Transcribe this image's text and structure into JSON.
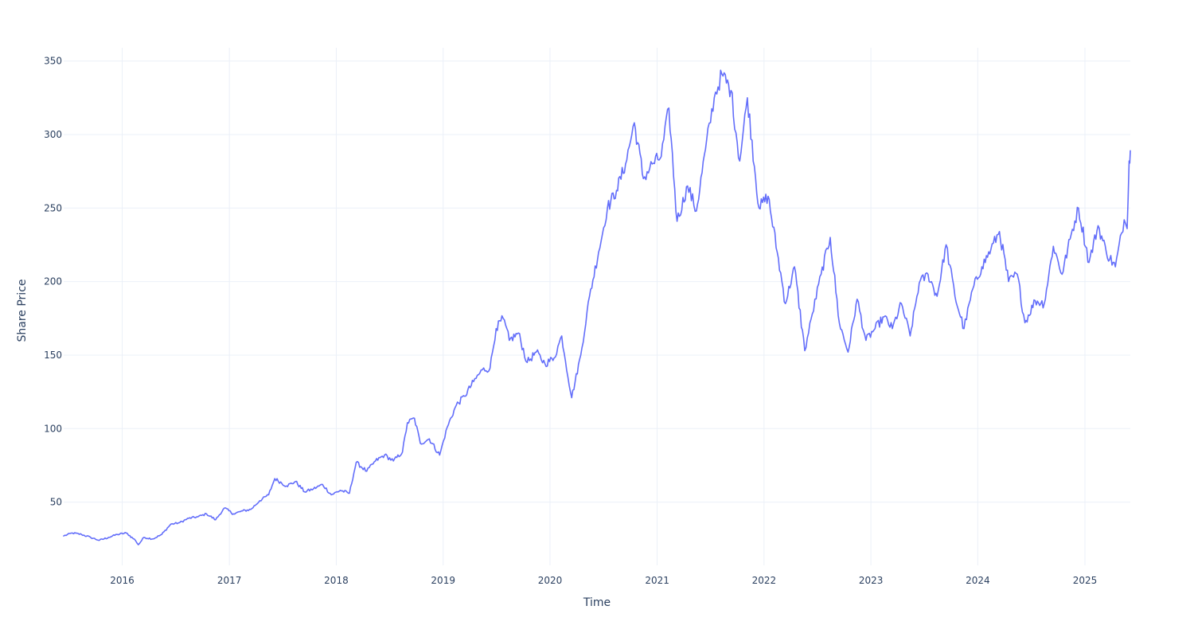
{
  "chart_data": {
    "type": "line",
    "title": "",
    "xlabel": "Time",
    "ylabel": "Share Price",
    "xlim": [
      "2015-06-15",
      "2025-06-05"
    ],
    "ylim": [
      7,
      359
    ],
    "x_ticks": [
      "2016",
      "2017",
      "2018",
      "2019",
      "2020",
      "2021",
      "2022",
      "2023",
      "2024",
      "2025"
    ],
    "y_ticks": [
      50,
      100,
      150,
      200,
      250,
      300,
      350
    ],
    "grid": true,
    "legend": "none",
    "series": [
      {
        "color": "#636efa",
        "points": [
          [
            "2015-06-15",
            27
          ],
          [
            "2015-07-15",
            29
          ],
          [
            "2015-08-15",
            28
          ],
          [
            "2015-09-15",
            26
          ],
          [
            "2015-10-15",
            24
          ],
          [
            "2015-11-15",
            26
          ],
          [
            "2015-12-15",
            28
          ],
          [
            "2016-01-15",
            29
          ],
          [
            "2016-02-15",
            24
          ],
          [
            "2016-02-25",
            21
          ],
          [
            "2016-03-15",
            26
          ],
          [
            "2016-04-15",
            25
          ],
          [
            "2016-05-15",
            28
          ],
          [
            "2016-06-15",
            35
          ],
          [
            "2016-07-15",
            36
          ],
          [
            "2016-08-15",
            39
          ],
          [
            "2016-09-15",
            40
          ],
          [
            "2016-10-15",
            42
          ],
          [
            "2016-11-15",
            38
          ],
          [
            "2016-12-15",
            46
          ],
          [
            "2017-01-15",
            42
          ],
          [
            "2017-02-15",
            44
          ],
          [
            "2017-03-15",
            45
          ],
          [
            "2017-04-15",
            51
          ],
          [
            "2017-05-15",
            55
          ],
          [
            "2017-06-05",
            66
          ],
          [
            "2017-07-15",
            61
          ],
          [
            "2017-08-15",
            64
          ],
          [
            "2017-09-15",
            57
          ],
          [
            "2017-10-15",
            59
          ],
          [
            "2017-11-15",
            62
          ],
          [
            "2017-12-15",
            55
          ],
          [
            "2018-01-15",
            58
          ],
          [
            "2018-02-15",
            56
          ],
          [
            "2018-03-10",
            77
          ],
          [
            "2018-04-15",
            71
          ],
          [
            "2018-05-15",
            78
          ],
          [
            "2018-06-15",
            82
          ],
          [
            "2018-07-15",
            78
          ],
          [
            "2018-08-15",
            84
          ],
          [
            "2018-09-01",
            104
          ],
          [
            "2018-09-25",
            107
          ],
          [
            "2018-10-15",
            90
          ],
          [
            "2018-11-15",
            93
          ],
          [
            "2018-12-20",
            82
          ],
          [
            "2019-01-15",
            101
          ],
          [
            "2019-02-15",
            116
          ],
          [
            "2019-03-15",
            122
          ],
          [
            "2019-04-15",
            132
          ],
          [
            "2019-05-15",
            140
          ],
          [
            "2019-06-10",
            141
          ],
          [
            "2019-07-01",
            168
          ],
          [
            "2019-07-25",
            175
          ],
          [
            "2019-08-15",
            160
          ],
          [
            "2019-09-15",
            165
          ],
          [
            "2019-10-15",
            145
          ],
          [
            "2019-11-15",
            152
          ],
          [
            "2019-12-15",
            144
          ],
          [
            "2020-01-15",
            148
          ],
          [
            "2020-02-10",
            163
          ],
          [
            "2020-03-15",
            121
          ],
          [
            "2020-04-15",
            150
          ],
          [
            "2020-05-15",
            190
          ],
          [
            "2020-06-15",
            220
          ],
          [
            "2020-07-15",
            250
          ],
          [
            "2020-08-15",
            262
          ],
          [
            "2020-09-15",
            280
          ],
          [
            "2020-10-15",
            308
          ],
          [
            "2020-11-15",
            270
          ],
          [
            "2020-12-15",
            280
          ],
          [
            "2021-01-15",
            285
          ],
          [
            "2021-02-10",
            318
          ],
          [
            "2021-03-10",
            241
          ],
          [
            "2021-04-15",
            265
          ],
          [
            "2021-05-15",
            248
          ],
          [
            "2021-06-15",
            290
          ],
          [
            "2021-07-15",
            325
          ],
          [
            "2021-08-10",
            341
          ],
          [
            "2021-09-10",
            330
          ],
          [
            "2021-10-10",
            282
          ],
          [
            "2021-11-05",
            325
          ],
          [
            "2021-12-15",
            250
          ],
          [
            "2022-01-15",
            258
          ],
          [
            "2022-02-15",
            220
          ],
          [
            "2022-03-15",
            185
          ],
          [
            "2022-04-15",
            210
          ],
          [
            "2022-05-20",
            153
          ],
          [
            "2022-06-15",
            178
          ],
          [
            "2022-07-15",
            205
          ],
          [
            "2022-08-15",
            230
          ],
          [
            "2022-09-15",
            172
          ],
          [
            "2022-10-15",
            152
          ],
          [
            "2022-11-15",
            188
          ],
          [
            "2022-12-15",
            160
          ],
          [
            "2023-01-15",
            168
          ],
          [
            "2023-02-15",
            176
          ],
          [
            "2023-03-15",
            168
          ],
          [
            "2023-04-15",
            185
          ],
          [
            "2023-05-15",
            163
          ],
          [
            "2023-06-15",
            199
          ],
          [
            "2023-07-15",
            205
          ],
          [
            "2023-08-15",
            190
          ],
          [
            "2023-09-15",
            225
          ],
          [
            "2023-10-15",
            190
          ],
          [
            "2023-11-15",
            168
          ],
          [
            "2023-12-15",
            195
          ],
          [
            "2024-01-15",
            210
          ],
          [
            "2024-02-15",
            222
          ],
          [
            "2024-03-15",
            234
          ],
          [
            "2024-04-15",
            200
          ],
          [
            "2024-05-15",
            205
          ],
          [
            "2024-06-10",
            172
          ],
          [
            "2024-07-15",
            187
          ],
          [
            "2024-08-15",
            185
          ],
          [
            "2024-09-15",
            224
          ],
          [
            "2024-10-15",
            205
          ],
          [
            "2024-11-15",
            232
          ],
          [
            "2024-12-10",
            250
          ],
          [
            "2025-01-15",
            213
          ],
          [
            "2025-02-15",
            238
          ],
          [
            "2025-03-15",
            220
          ],
          [
            "2025-04-15",
            210
          ],
          [
            "2025-05-15",
            242
          ],
          [
            "2025-05-25",
            236
          ],
          [
            "2025-06-01",
            282
          ],
          [
            "2025-06-05",
            289
          ]
        ]
      }
    ]
  }
}
